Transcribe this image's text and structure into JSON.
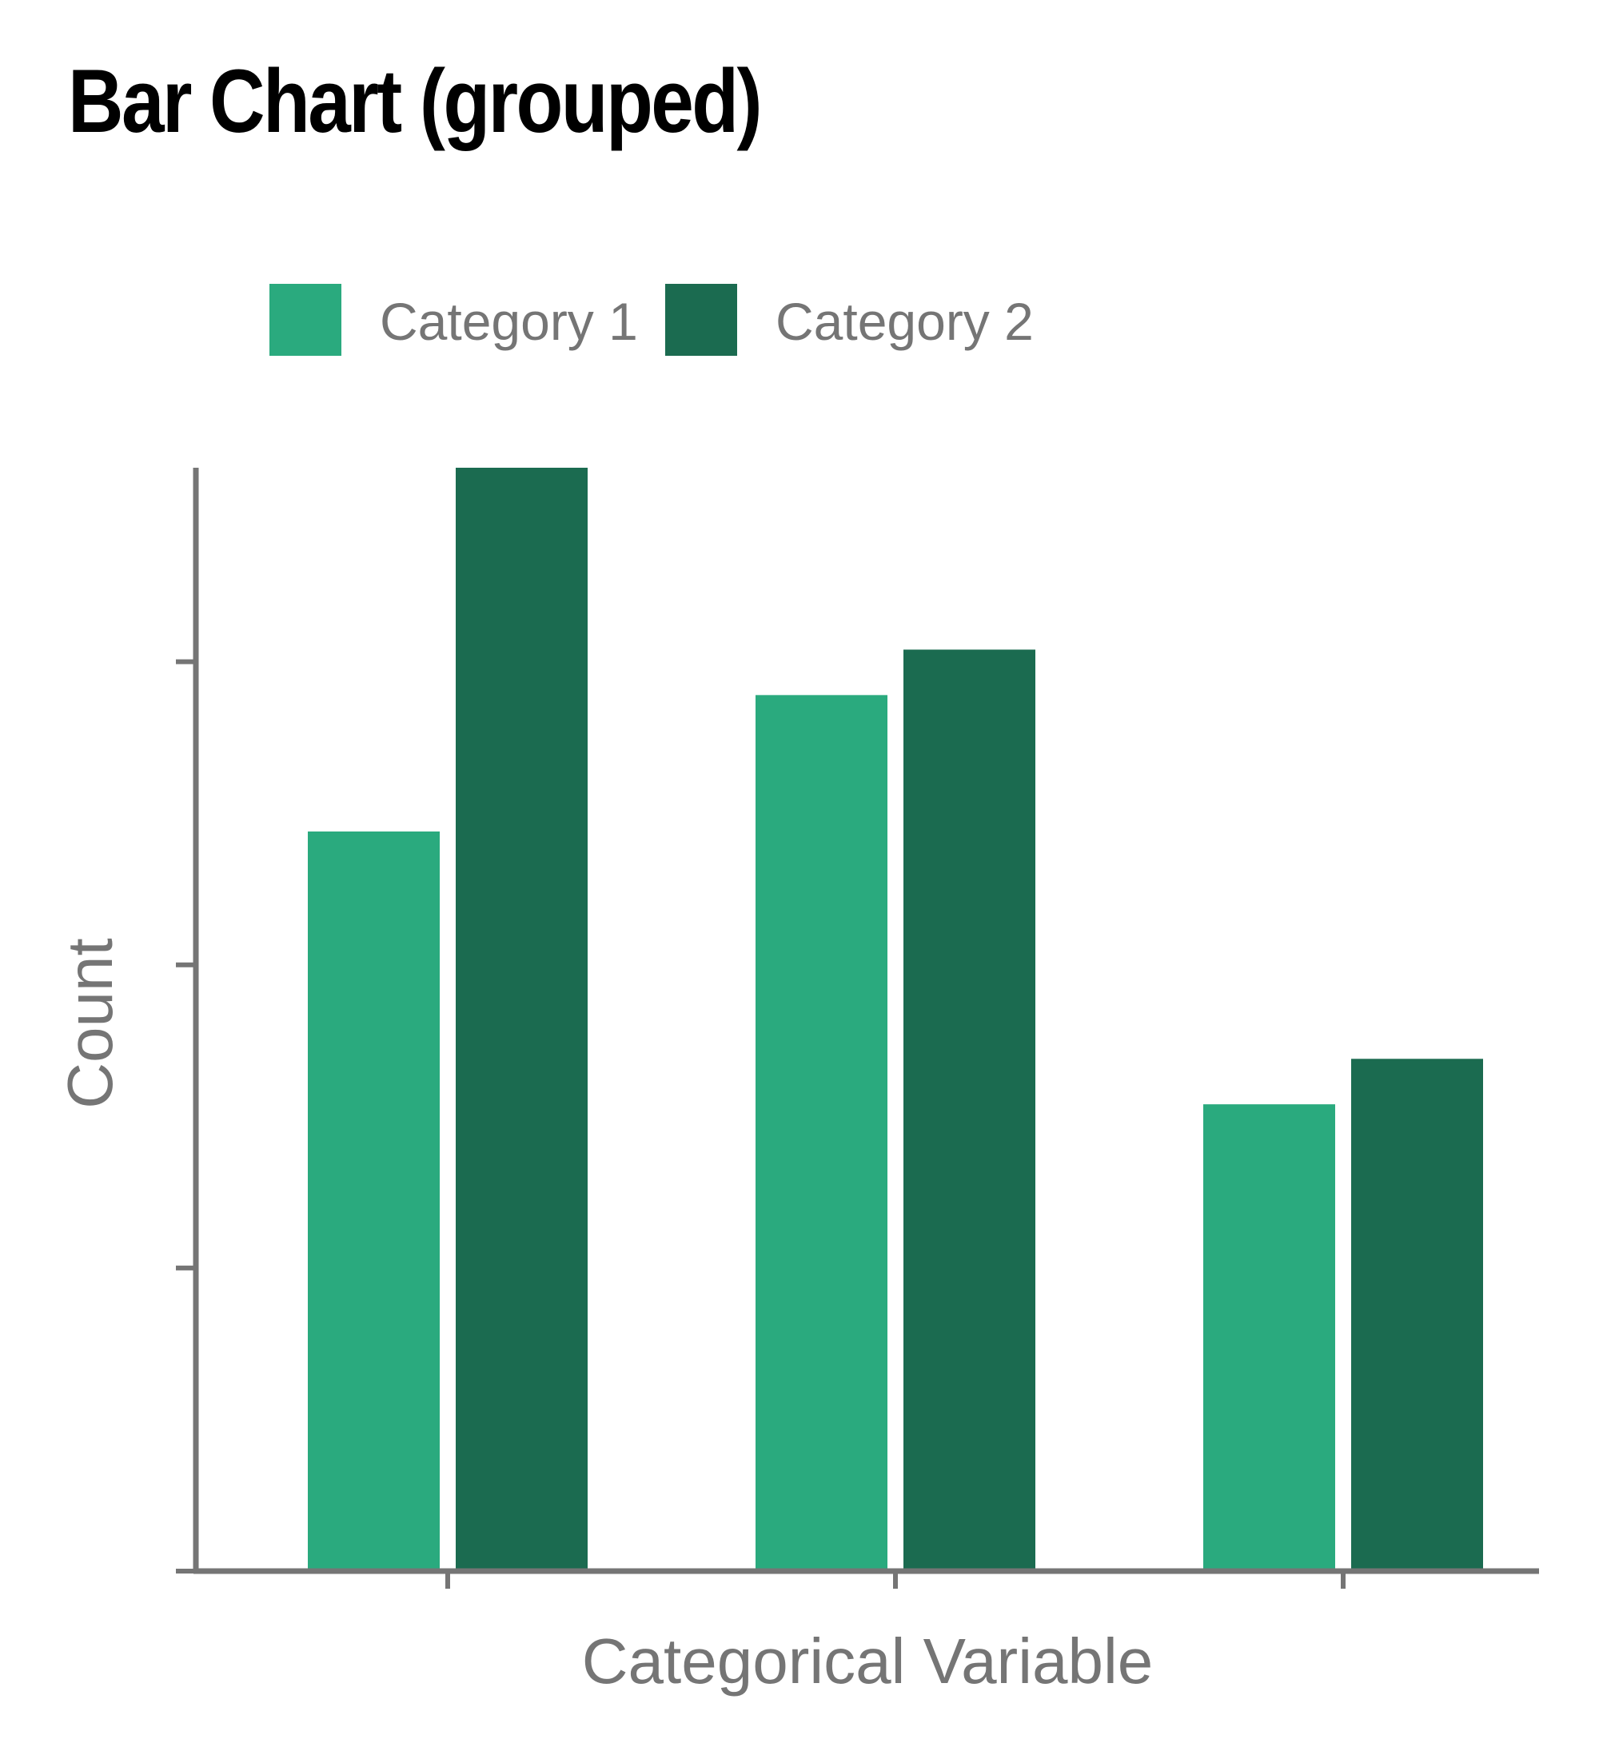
{
  "chart_data": {
    "type": "bar",
    "title": "Bar Chart (grouped)",
    "xlabel": "Categorical Variable",
    "ylabel": "Count",
    "categories": [
      "",
      "",
      ""
    ],
    "series": [
      {
        "name": "Category 1",
        "values": [
          24.4,
          28.9,
          15.4
        ],
        "color": "#2aaa7e"
      },
      {
        "name": "Category 2",
        "values": [
          36.4,
          30.4,
          16.9
        ],
        "color": "#1b6b50"
      }
    ],
    "ylim": [
      0,
      36.4
    ],
    "yticks": [
      0,
      10,
      20,
      30
    ],
    "grid": false,
    "legend_position": "top-left",
    "colors": {
      "axis": "#757575",
      "text": "#757575",
      "title": "#000000"
    }
  }
}
